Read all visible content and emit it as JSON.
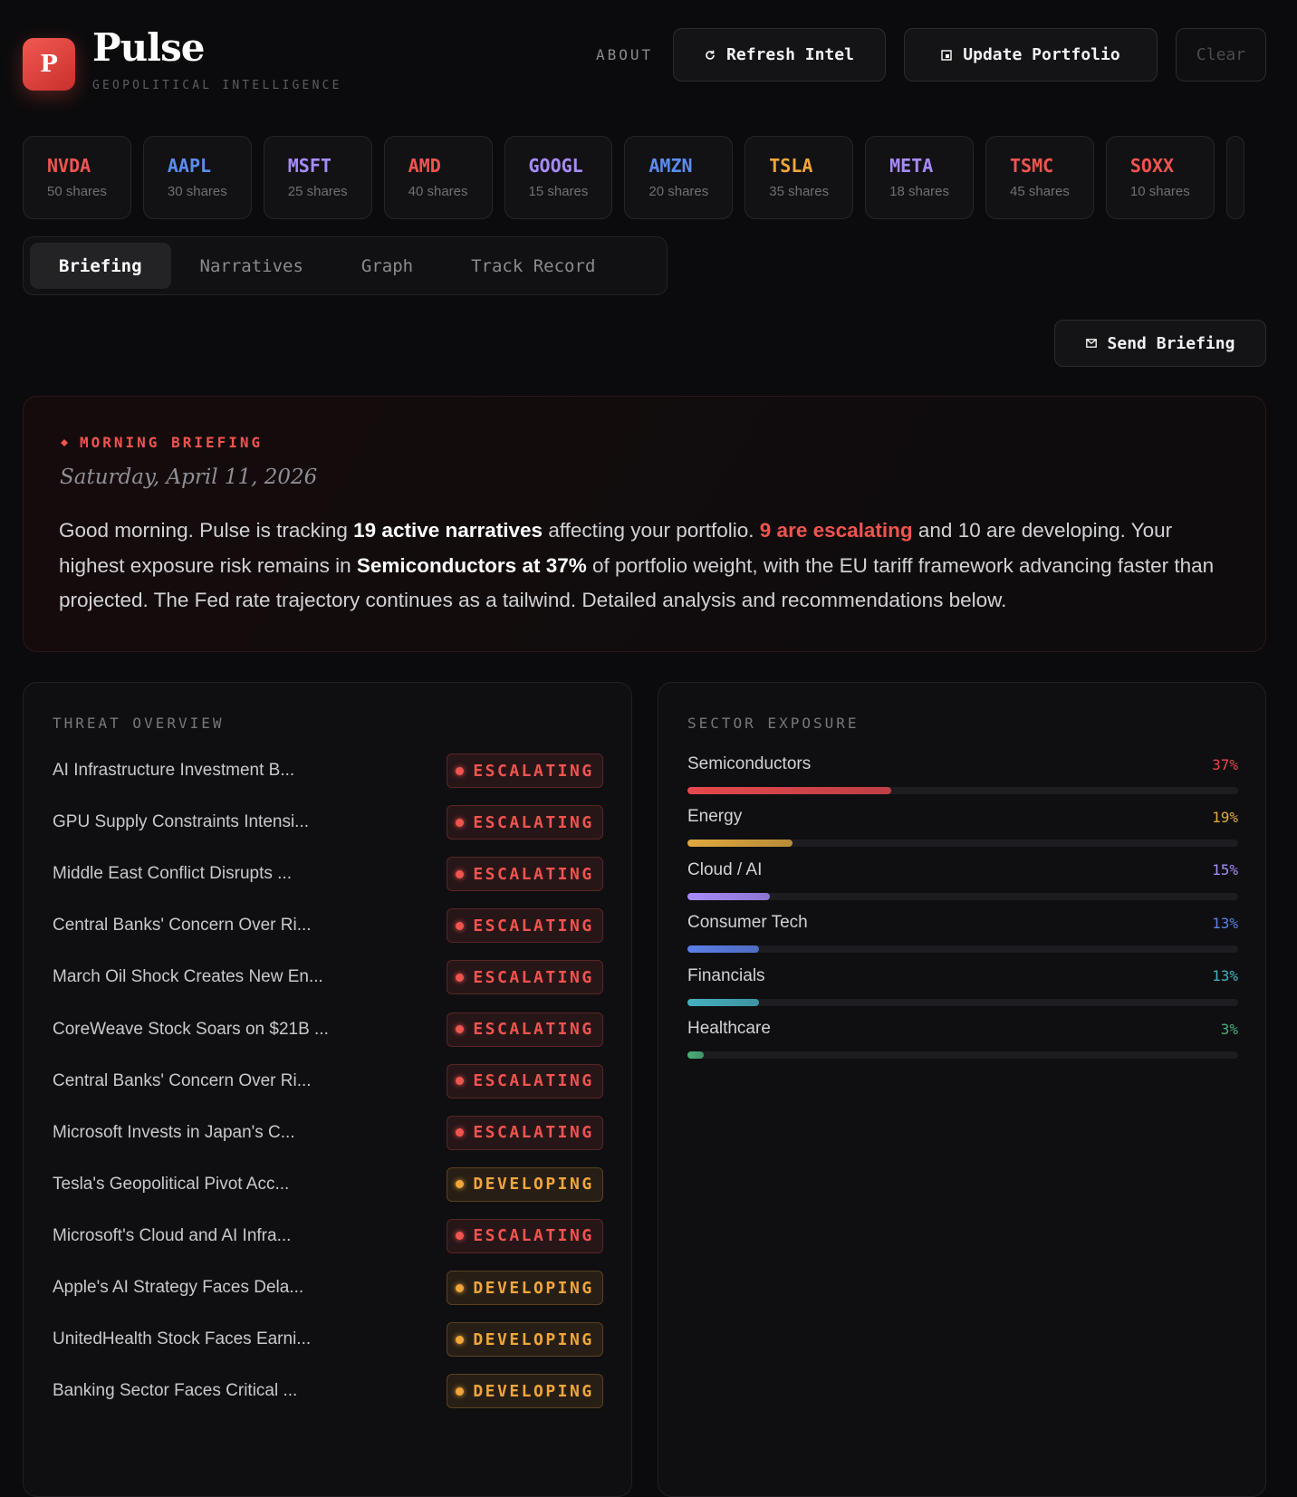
{
  "header": {
    "logo": "P",
    "title": "Pulse",
    "subtitle": "GEOPOLITICAL INTELLIGENCE",
    "nav": "ABOUT",
    "buttons": [
      "Refresh Intel",
      "Update Portfolio",
      "Clear"
    ]
  },
  "portfolio": [
    {
      "ticker": "NVDA",
      "shares": "50 shares",
      "color": "#f0544f"
    },
    {
      "ticker": "AAPL",
      "shares": "30 shares",
      "color": "#5b8def"
    },
    {
      "ticker": "MSFT",
      "shares": "25 shares",
      "color": "#a78bfa"
    },
    {
      "ticker": "AMD",
      "shares": "40 shares",
      "color": "#f0544f"
    },
    {
      "ticker": "GOOGL",
      "shares": "15 shares",
      "color": "#a78bfa"
    },
    {
      "ticker": "AMZN",
      "shares": "20 shares",
      "color": "#5b8def"
    },
    {
      "ticker": "TSLA",
      "shares": "35 shares",
      "color": "#f0a63a"
    },
    {
      "ticker": "META",
      "shares": "18 shares",
      "color": "#a78bfa"
    },
    {
      "ticker": "TSMC",
      "shares": "45 shares",
      "color": "#f0544f"
    },
    {
      "ticker": "SOXX",
      "shares": "10 shares",
      "color": "#f0544f"
    }
  ],
  "tabs": {
    "items": [
      "Briefing",
      "Narratives",
      "Graph",
      "Track Record"
    ],
    "active": 0
  },
  "send_button": "Send Briefing",
  "briefing": {
    "label": "MORNING BRIEFING",
    "date": "Saturday, April 11, 2026",
    "paragraph": [
      "Good morning. Pulse is tracking ",
      "19 active narratives",
      " affecting your portfolio. ",
      "9 are escalating",
      " and 10 are developing. Your highest exposure risk remains in ",
      "Semiconductors at 37%",
      " of portfolio weight, with the EU tariff framework advancing faster than projected. The Fed rate trajectory continues as a tailwind. Detailed analysis and recommendations below."
    ]
  },
  "threats": {
    "title": "THREAT OVERVIEW",
    "items": [
      {
        "name": "AI Infrastructure Investment B...",
        "status": "ESCALATING",
        "color": "#f0544f"
      },
      {
        "name": "GPU Supply Constraints Intensi...",
        "status": "ESCALATING",
        "color": "#f0544f"
      },
      {
        "name": "Middle East Conflict Disrupts ...",
        "status": "ESCALATING",
        "color": "#f0544f"
      },
      {
        "name": "Central Banks' Concern Over Ri...",
        "status": "ESCALATING",
        "color": "#f0544f"
      },
      {
        "name": "March Oil Shock Creates New En...",
        "status": "ESCALATING",
        "color": "#f0544f"
      },
      {
        "name": "CoreWeave Stock Soars on $21B ...",
        "status": "ESCALATING",
        "color": "#f0544f"
      },
      {
        "name": "Central Banks' Concern Over Ri...",
        "status": "ESCALATING",
        "color": "#f0544f"
      },
      {
        "name": "Microsoft Invests in Japan's C...",
        "status": "ESCALATING",
        "color": "#f0544f"
      },
      {
        "name": "Tesla's Geopolitical Pivot Acc...",
        "status": "DEVELOPING",
        "color": "#f0a63a"
      },
      {
        "name": "Microsoft's Cloud and AI Infra...",
        "status": "ESCALATING",
        "color": "#f0544f"
      },
      {
        "name": "Apple's AI Strategy Faces Dela...",
        "status": "DEVELOPING",
        "color": "#f0a63a"
      },
      {
        "name": "UnitedHealth Stock Faces Earni...",
        "status": "DEVELOPING",
        "color": "#f0a63a"
      },
      {
        "name": "Banking Sector Faces Critical ...",
        "status": "DEVELOPING",
        "color": "#f0a63a"
      }
    ]
  },
  "sectors": {
    "title": "SECTOR EXPOSURE",
    "items": [
      {
        "name": "Semiconductors",
        "value": 37,
        "label": "37%",
        "color": "#e5484d"
      },
      {
        "name": "Energy",
        "value": 19,
        "label": "19%",
        "color": "#e0a83e"
      },
      {
        "name": "Cloud / AI",
        "value": 15,
        "label": "15%",
        "color": "#a78bfa"
      },
      {
        "name": "Consumer Tech",
        "value": 13,
        "label": "13%",
        "color": "#5b7fe8"
      },
      {
        "name": "Financials",
        "value": 13,
        "label": "13%",
        "color": "#45b0c0"
      },
      {
        "name": "Healthcare",
        "value": 3,
        "label": "3%",
        "color": "#4caf7a"
      }
    ]
  }
}
